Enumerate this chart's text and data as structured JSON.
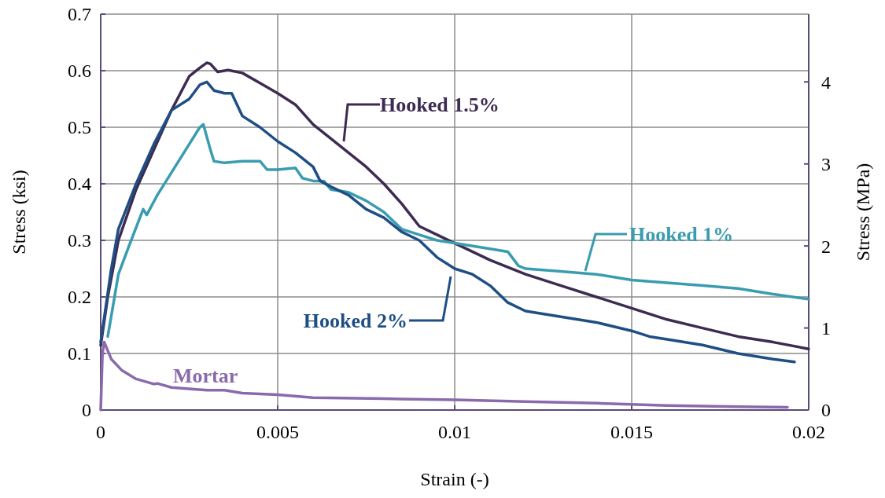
{
  "chart_data": {
    "type": "line",
    "xlabel": "Strain (-)",
    "ylabel": "Stress (ksi)",
    "y2label": "Stress (MPa)",
    "xlim": [
      0,
      0.02
    ],
    "xticks": [
      0,
      0.005,
      0.01,
      0.015,
      0.02
    ],
    "ylim": [
      0,
      0.7
    ],
    "yticks": [
      0,
      0.1,
      0.2,
      0.3,
      0.4,
      0.5,
      0.6,
      0.7
    ],
    "y2lim": [
      0,
      4.826
    ],
    "y2ticks": [
      0,
      1,
      2,
      3,
      4
    ],
    "grid": true,
    "marker": "none",
    "line_style": "solid",
    "series": [
      {
        "name": "Hooked 1.5%",
        "color": "#3d2b52",
        "x": [
          0,
          0.0002,
          0.0005,
          0.001,
          0.0015,
          0.002,
          0.0025,
          0.0028,
          0.003,
          0.0031,
          0.0033,
          0.0036,
          0.004,
          0.0045,
          0.005,
          0.0055,
          0.006,
          0.0065,
          0.007,
          0.0075,
          0.008,
          0.0085,
          0.009,
          0.0095,
          0.01,
          0.011,
          0.012,
          0.013,
          0.014,
          0.015,
          0.016,
          0.017,
          0.018,
          0.019,
          0.02
        ],
        "values": [
          0.114,
          0.2,
          0.3,
          0.39,
          0.46,
          0.53,
          0.59,
          0.605,
          0.614,
          0.612,
          0.598,
          0.601,
          0.596,
          0.578,
          0.56,
          0.54,
          0.505,
          0.48,
          0.455,
          0.43,
          0.4,
          0.365,
          0.325,
          0.31,
          0.295,
          0.265,
          0.24,
          0.22,
          0.2,
          0.18,
          0.16,
          0.145,
          0.13,
          0.12,
          0.108
        ]
      },
      {
        "name": "Hooked 1%",
        "color": "#3a9cb0",
        "x": [
          0.0002,
          0.0005,
          0.0008,
          0.0012,
          0.0013,
          0.0016,
          0.002,
          0.0025,
          0.0028,
          0.0029,
          0.0031,
          0.0032,
          0.0035,
          0.004,
          0.0045,
          0.0047,
          0.005,
          0.0055,
          0.0057,
          0.006,
          0.0063,
          0.0065,
          0.007,
          0.0075,
          0.008,
          0.0085,
          0.009,
          0.0095,
          0.01,
          0.011,
          0.0115,
          0.0118,
          0.012,
          0.013,
          0.014,
          0.015,
          0.016,
          0.017,
          0.018,
          0.019,
          0.02
        ],
        "values": [
          0.13,
          0.24,
          0.29,
          0.355,
          0.345,
          0.38,
          0.42,
          0.47,
          0.5,
          0.505,
          0.46,
          0.44,
          0.437,
          0.44,
          0.44,
          0.425,
          0.425,
          0.428,
          0.41,
          0.405,
          0.405,
          0.39,
          0.385,
          0.37,
          0.35,
          0.32,
          0.31,
          0.3,
          0.295,
          0.285,
          0.28,
          0.255,
          0.25,
          0.245,
          0.24,
          0.23,
          0.225,
          0.22,
          0.215,
          0.205,
          0.196
        ]
      },
      {
        "name": "Hooked 2%",
        "color": "#1f4e85",
        "x": [
          0,
          0.0003,
          0.0005,
          0.001,
          0.0015,
          0.002,
          0.0025,
          0.0028,
          0.003,
          0.0032,
          0.0035,
          0.0037,
          0.004,
          0.0045,
          0.005,
          0.0055,
          0.006,
          0.0062,
          0.0065,
          0.007,
          0.0075,
          0.008,
          0.0085,
          0.009,
          0.0095,
          0.01,
          0.0105,
          0.011,
          0.0115,
          0.012,
          0.013,
          0.014,
          0.015,
          0.0155,
          0.016,
          0.017,
          0.018,
          0.019,
          0.0196
        ],
        "values": [
          0.12,
          0.25,
          0.32,
          0.4,
          0.47,
          0.53,
          0.55,
          0.575,
          0.58,
          0.565,
          0.56,
          0.56,
          0.52,
          0.5,
          0.475,
          0.455,
          0.43,
          0.405,
          0.395,
          0.38,
          0.355,
          0.34,
          0.315,
          0.3,
          0.27,
          0.25,
          0.24,
          0.22,
          0.19,
          0.175,
          0.165,
          0.155,
          0.14,
          0.13,
          0.125,
          0.115,
          0.1,
          0.09,
          0.085
        ]
      },
      {
        "name": "Mortar",
        "color": "#8a6aac",
        "x": [
          0,
          5e-05,
          0.0001,
          0.0003,
          0.0006,
          0.001,
          0.0015,
          0.0016,
          0.002,
          0.003,
          0.0035,
          0.004,
          0.005,
          0.006,
          0.008,
          0.01,
          0.012,
          0.014,
          0.016,
          0.018,
          0.0194
        ],
        "values": [
          0,
          0.1,
          0.12,
          0.09,
          0.07,
          0.055,
          0.046,
          0.047,
          0.04,
          0.035,
          0.035,
          0.03,
          0.027,
          0.022,
          0.02,
          0.018,
          0.015,
          0.012,
          0.008,
          0.006,
          0.005
        ]
      }
    ]
  }
}
